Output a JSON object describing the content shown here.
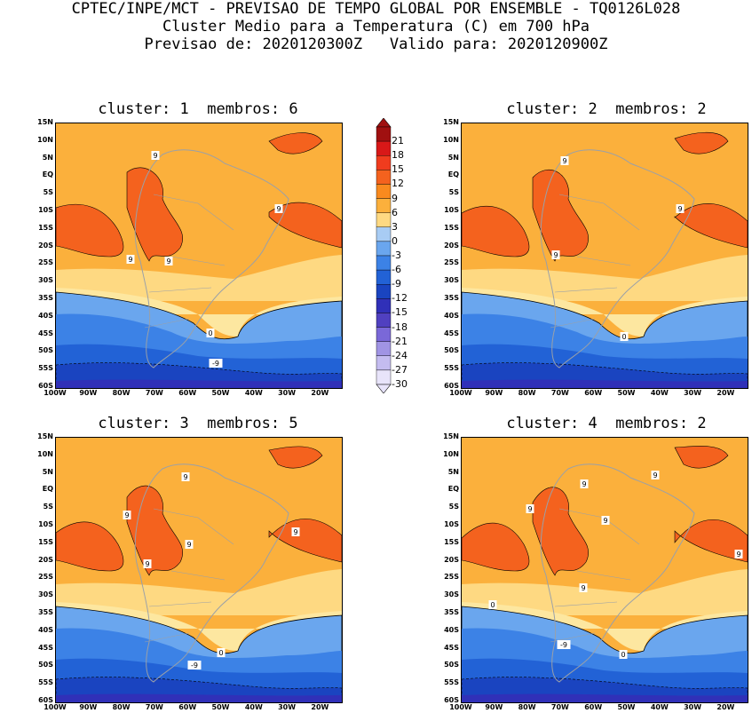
{
  "header": {
    "line1": "CPTEC/INPE/MCT - PREVISAO DE TEMPO GLOBAL POR ENSEMBLE - TQ0126L028",
    "line2": "Cluster Medio para a Temperatura (C) em 700 hPa",
    "line3": "Previsao de: 2020120300Z   Valido para: 2020120900Z"
  },
  "panels": [
    {
      "title": "cluster: 1  membros: 6",
      "contour_labels": [
        "9",
        "9",
        "9",
        "9",
        "0",
        "-9"
      ]
    },
    {
      "title": "cluster: 2  membros: 2",
      "contour_labels": [
        "9",
        "9",
        "9",
        "0"
      ]
    },
    {
      "title": "cluster: 3  membros: 5",
      "contour_labels": [
        "9",
        "9",
        "9",
        "9",
        "9",
        "0",
        "-9"
      ]
    },
    {
      "title": "cluster: 4  membros: 2",
      "contour_labels": [
        "9",
        "9",
        "9",
        "9",
        "9",
        "9",
        "0",
        "0",
        "-9"
      ]
    }
  ],
  "axes": {
    "lat_labels": [
      "15N",
      "10N",
      "5N",
      "EQ",
      "5S",
      "10S",
      "15S",
      "20S",
      "25S",
      "30S",
      "35S",
      "40S",
      "45S",
      "50S",
      "55S",
      "60S"
    ],
    "lon_labels": [
      "100W",
      "90W",
      "80W",
      "70W",
      "60W",
      "50W",
      "40W",
      "30W",
      "20W"
    ]
  },
  "colorbar": {
    "labels": [
      "21",
      "18",
      "15",
      "12",
      "9",
      "6",
      "3",
      "0",
      "-3",
      "-6",
      "-9",
      "-12",
      "-15",
      "-18",
      "-21",
      "-24",
      "-27",
      "-30"
    ],
    "colors": [
      "#a01010",
      "#d81818",
      "#f03c1e",
      "#f4621e",
      "#f98a1e",
      "#fbb03c",
      "#fed982",
      "#a8ccf4",
      "#6aa6ee",
      "#3c82e6",
      "#2262d6",
      "#1a44c0",
      "#3030b8",
      "#5040c0",
      "#7a68d8",
      "#a094e4",
      "#c4bcf0",
      "#e8e4fa"
    ]
  }
}
